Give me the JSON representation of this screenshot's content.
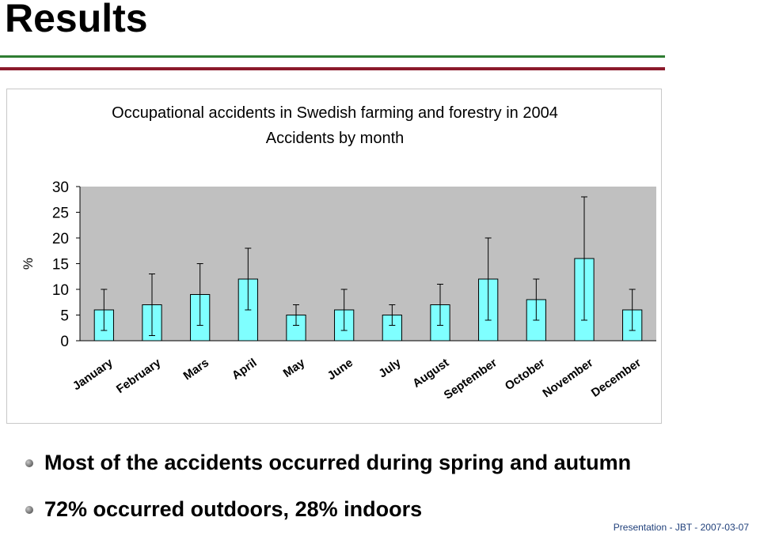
{
  "slide": {
    "title": "Results",
    "bullets": [
      "Most of the accidents occurred during spring and autumn",
      "72% occurred outdoors, 28% indoors"
    ],
    "footer": "Presentation  -  JBT  -  2007-03-07",
    "colors": {
      "rule_top": "#2e7d32",
      "rule_bottom": "#8b1a2b",
      "bar_fill": "#7fffff",
      "plot_bg": "#c0c0c0"
    }
  },
  "chart_data": {
    "type": "bar",
    "title": "Occupational accidents in Swedish farming and forestry in 2004",
    "subtitle": "Accidents by month",
    "ylabel": "%",
    "xlabel": "",
    "ylim": [
      0,
      30
    ],
    "yticks": [
      "0",
      "5",
      "10",
      "15",
      "20",
      "25",
      "30"
    ],
    "categories": [
      "January",
      "February",
      "Mars",
      "April",
      "May",
      "June",
      "July",
      "August",
      "September",
      "October",
      "November",
      "December"
    ],
    "values": [
      6,
      7,
      9,
      12,
      5,
      6,
      5,
      7,
      12,
      8,
      16,
      6
    ],
    "error_low": [
      2,
      1,
      3,
      6,
      3,
      2,
      3,
      3,
      4,
      4,
      4,
      2
    ],
    "error_high": [
      10,
      13,
      15,
      18,
      7,
      10,
      7,
      11,
      20,
      12,
      28,
      10
    ],
    "grid": false,
    "legend": "none"
  }
}
